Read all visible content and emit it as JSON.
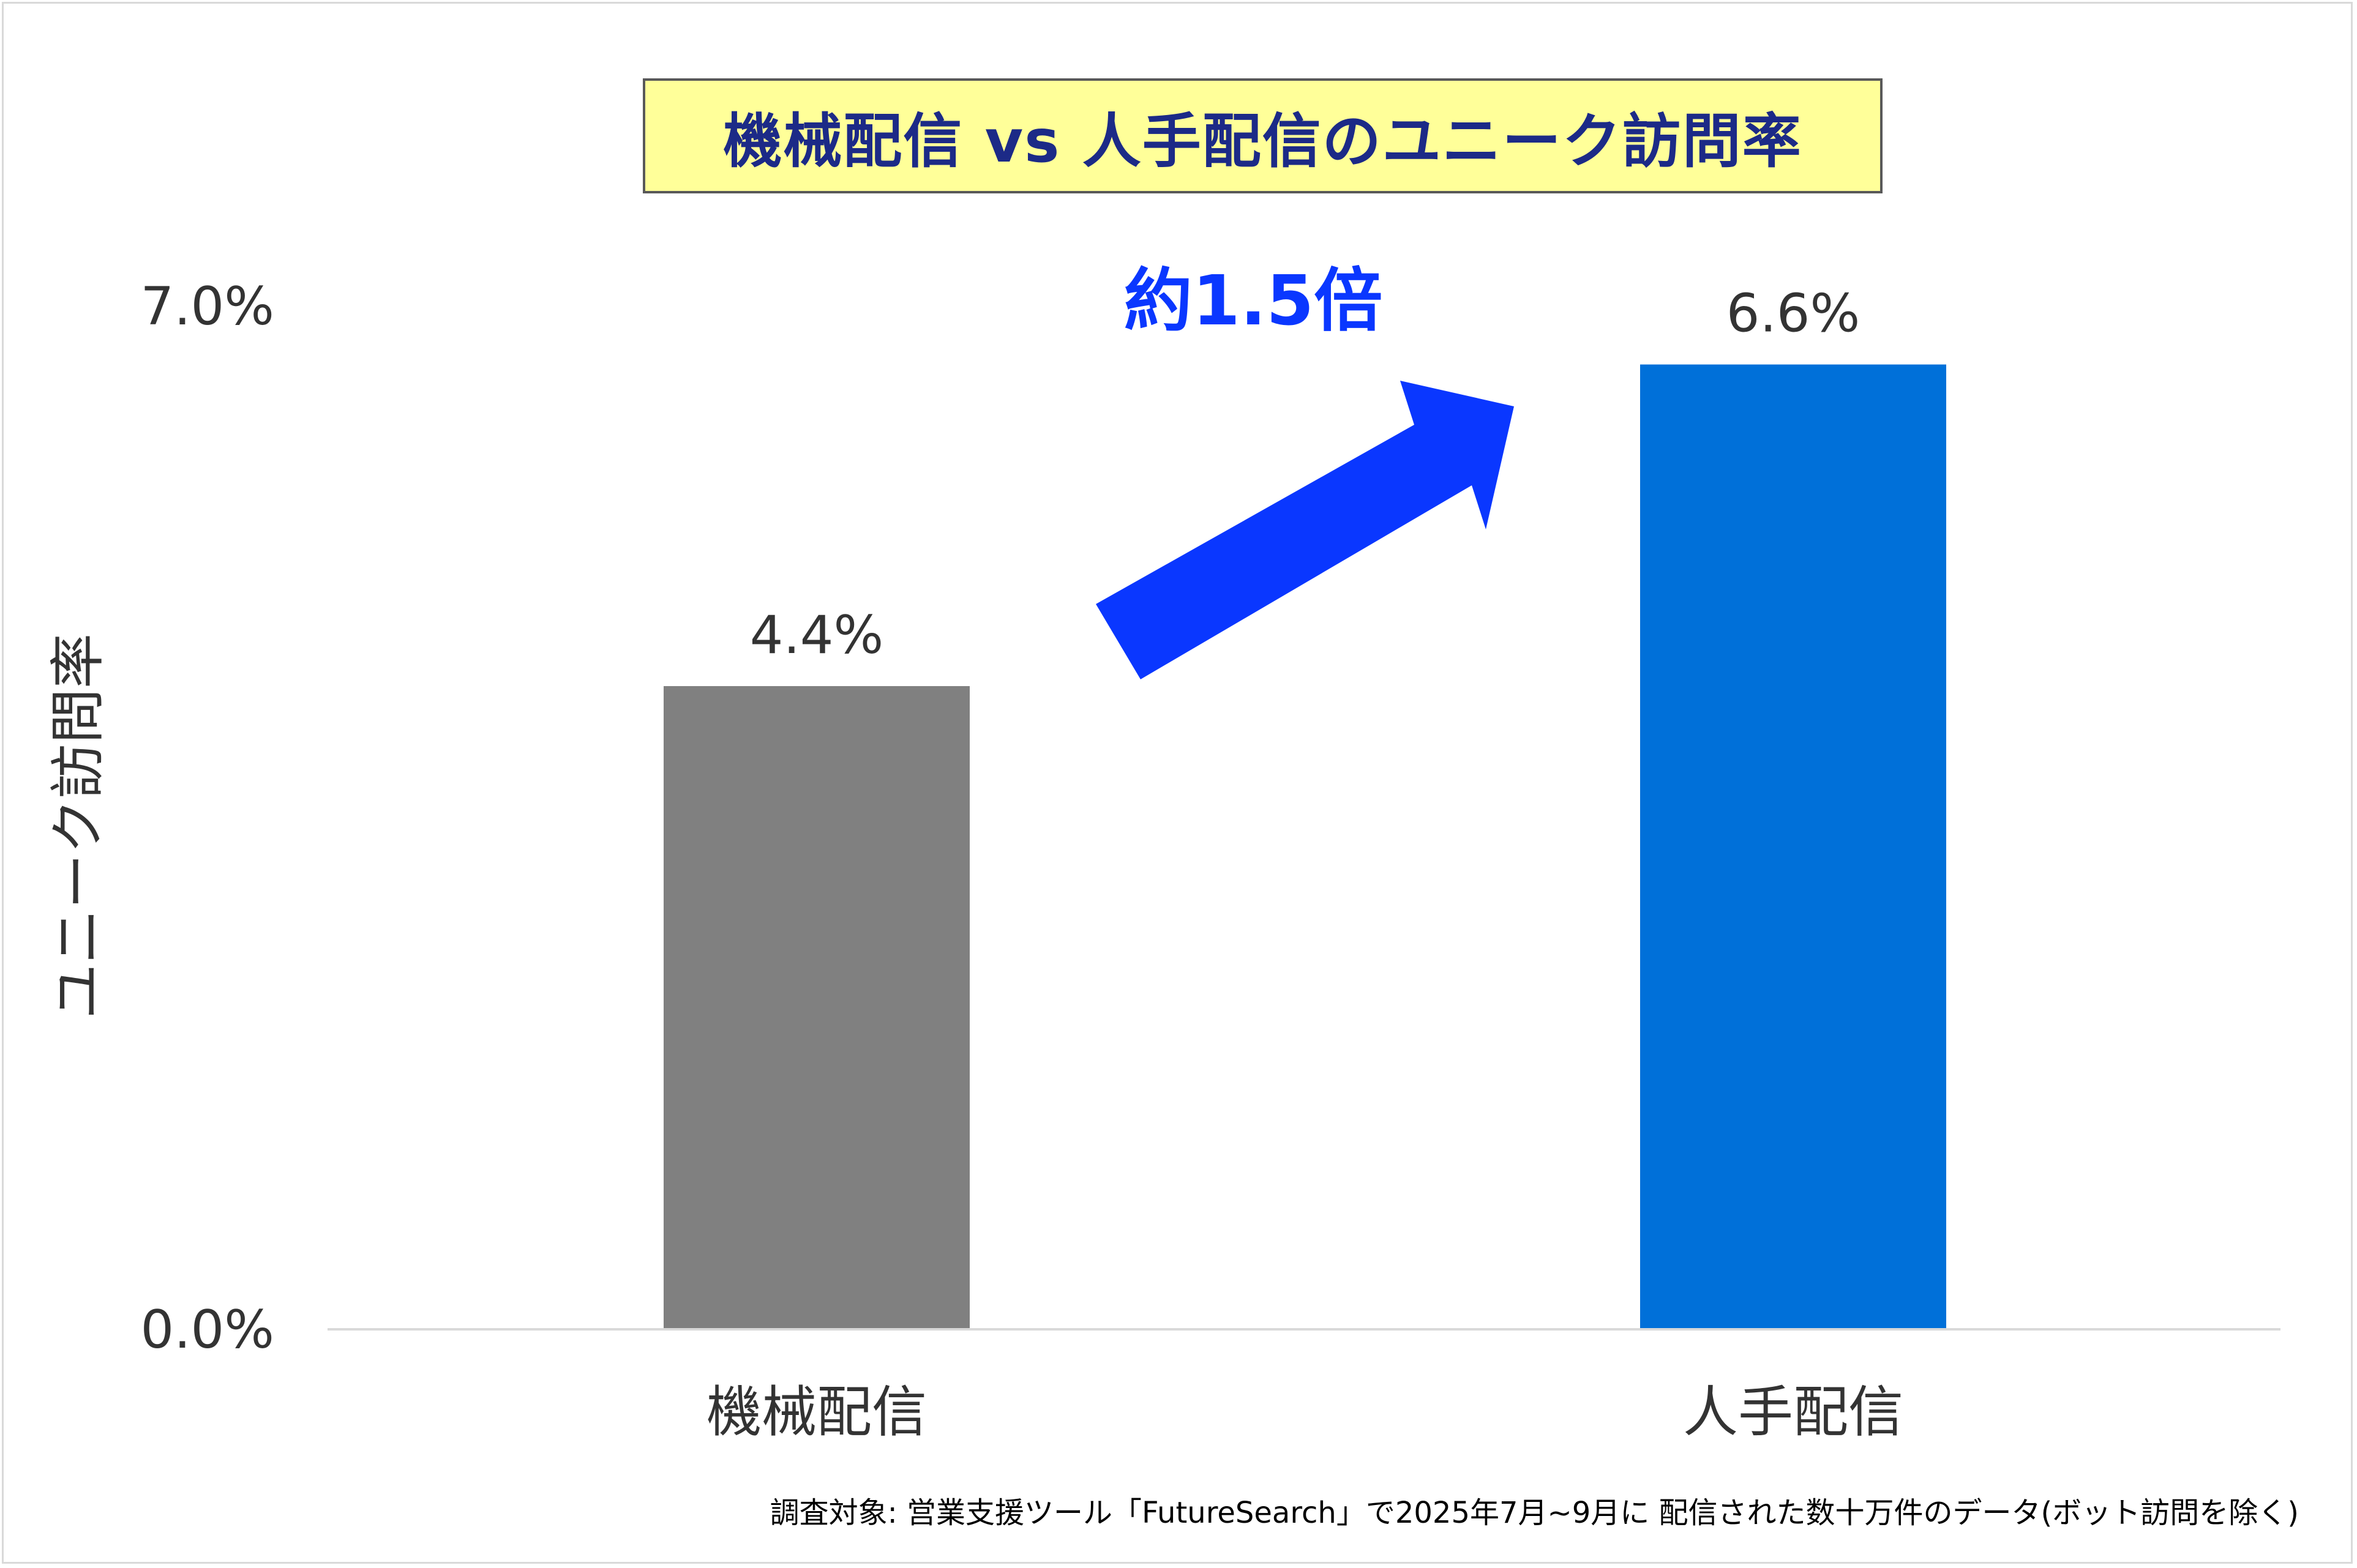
{
  "title": "機械配信 vs 人手配信のユニーク訪問率",
  "annotation": "約1.5倍",
  "footnote": "調査対象: 営業支援ツール「FutureSearch」で2025年7月~9月に 配信された数十万件のデータ(ボット訪問を除く)",
  "chart_data": {
    "type": "bar",
    "title": "機械配信 vs 人手配信のユニーク訪問率",
    "categories": [
      "機械配信",
      "人手配信"
    ],
    "values": [
      4.4,
      6.6
    ],
    "value_labels": [
      "4.4%",
      "6.6%"
    ],
    "colors": [
      "#808080",
      "#0070d9"
    ],
    "ylabel": "ユニーク訪問率",
    "xlabel": "",
    "ylim": [
      0,
      7.0
    ],
    "yticks": [
      0,
      7.0
    ],
    "ytick_labels": [
      "0.0%",
      "7.0%"
    ],
    "grid": false,
    "legend": "none"
  },
  "colors": {
    "title_bg": "#ffff99",
    "title_text": "#1c2a87",
    "arrow": "#0a37ff",
    "annotation": "#0a37ff",
    "axis_line": "#d9d9d9"
  }
}
